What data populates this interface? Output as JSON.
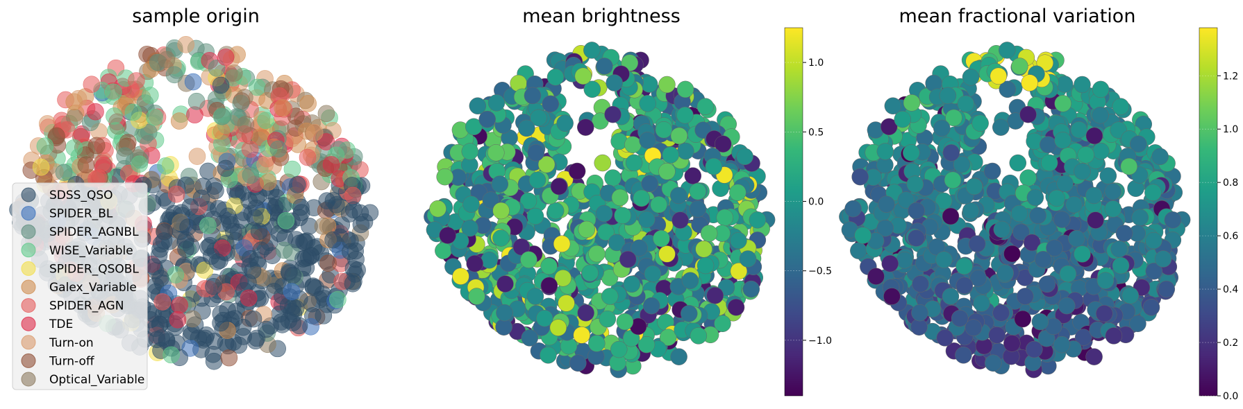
{
  "chart_data": [
    {
      "type": "scatter",
      "title": "sample origin",
      "axes_visible": false,
      "legend": "lower-left",
      "legend_entries": [
        {
          "name": "SDSS_QSO",
          "color": "#2e4d67"
        },
        {
          "name": "SPIDER_BL",
          "color": "#3b6fba"
        },
        {
          "name": "SPIDER_AGNBL",
          "color": "#5f8f7e"
        },
        {
          "name": "WISE_Variable",
          "color": "#5fc98a"
        },
        {
          "name": "SPIDER_QSOBL",
          "color": "#f2de4a"
        },
        {
          "name": "Galex_Variable",
          "color": "#cf8c4e"
        },
        {
          "name": "SPIDER_AGN",
          "color": "#e55a5a"
        },
        {
          "name": "TDE",
          "color": "#dd2a47"
        },
        {
          "name": "Turn-on",
          "color": "#d99a6c"
        },
        {
          "name": "Turn-off",
          "color": "#8f4f36"
        },
        {
          "name": "Optical_Variable",
          "color": "#8c7a5f"
        }
      ]
    },
    {
      "type": "scatter",
      "title": "mean brightness",
      "axes_visible": false,
      "colormap": "viridis",
      "colorbar": {
        "min": -1.4,
        "max": 1.25,
        "ticks": [
          -1.0,
          -0.5,
          0.0,
          0.5,
          1.0
        ],
        "tick_labels": [
          "−1.0",
          "−0.5",
          "0.0",
          "0.5",
          "1.0"
        ]
      }
    },
    {
      "type": "scatter",
      "title": "mean fractional variation",
      "axes_visible": false,
      "colormap": "viridis",
      "colorbar": {
        "min": 0.0,
        "max": 1.38,
        "ticks": [
          0.0,
          0.2,
          0.4,
          0.6,
          0.8,
          1.0,
          1.2
        ],
        "tick_labels": [
          "0.0",
          "0.2",
          "0.4",
          "0.6",
          "0.8",
          "1.0",
          "1.2"
        ]
      }
    }
  ]
}
